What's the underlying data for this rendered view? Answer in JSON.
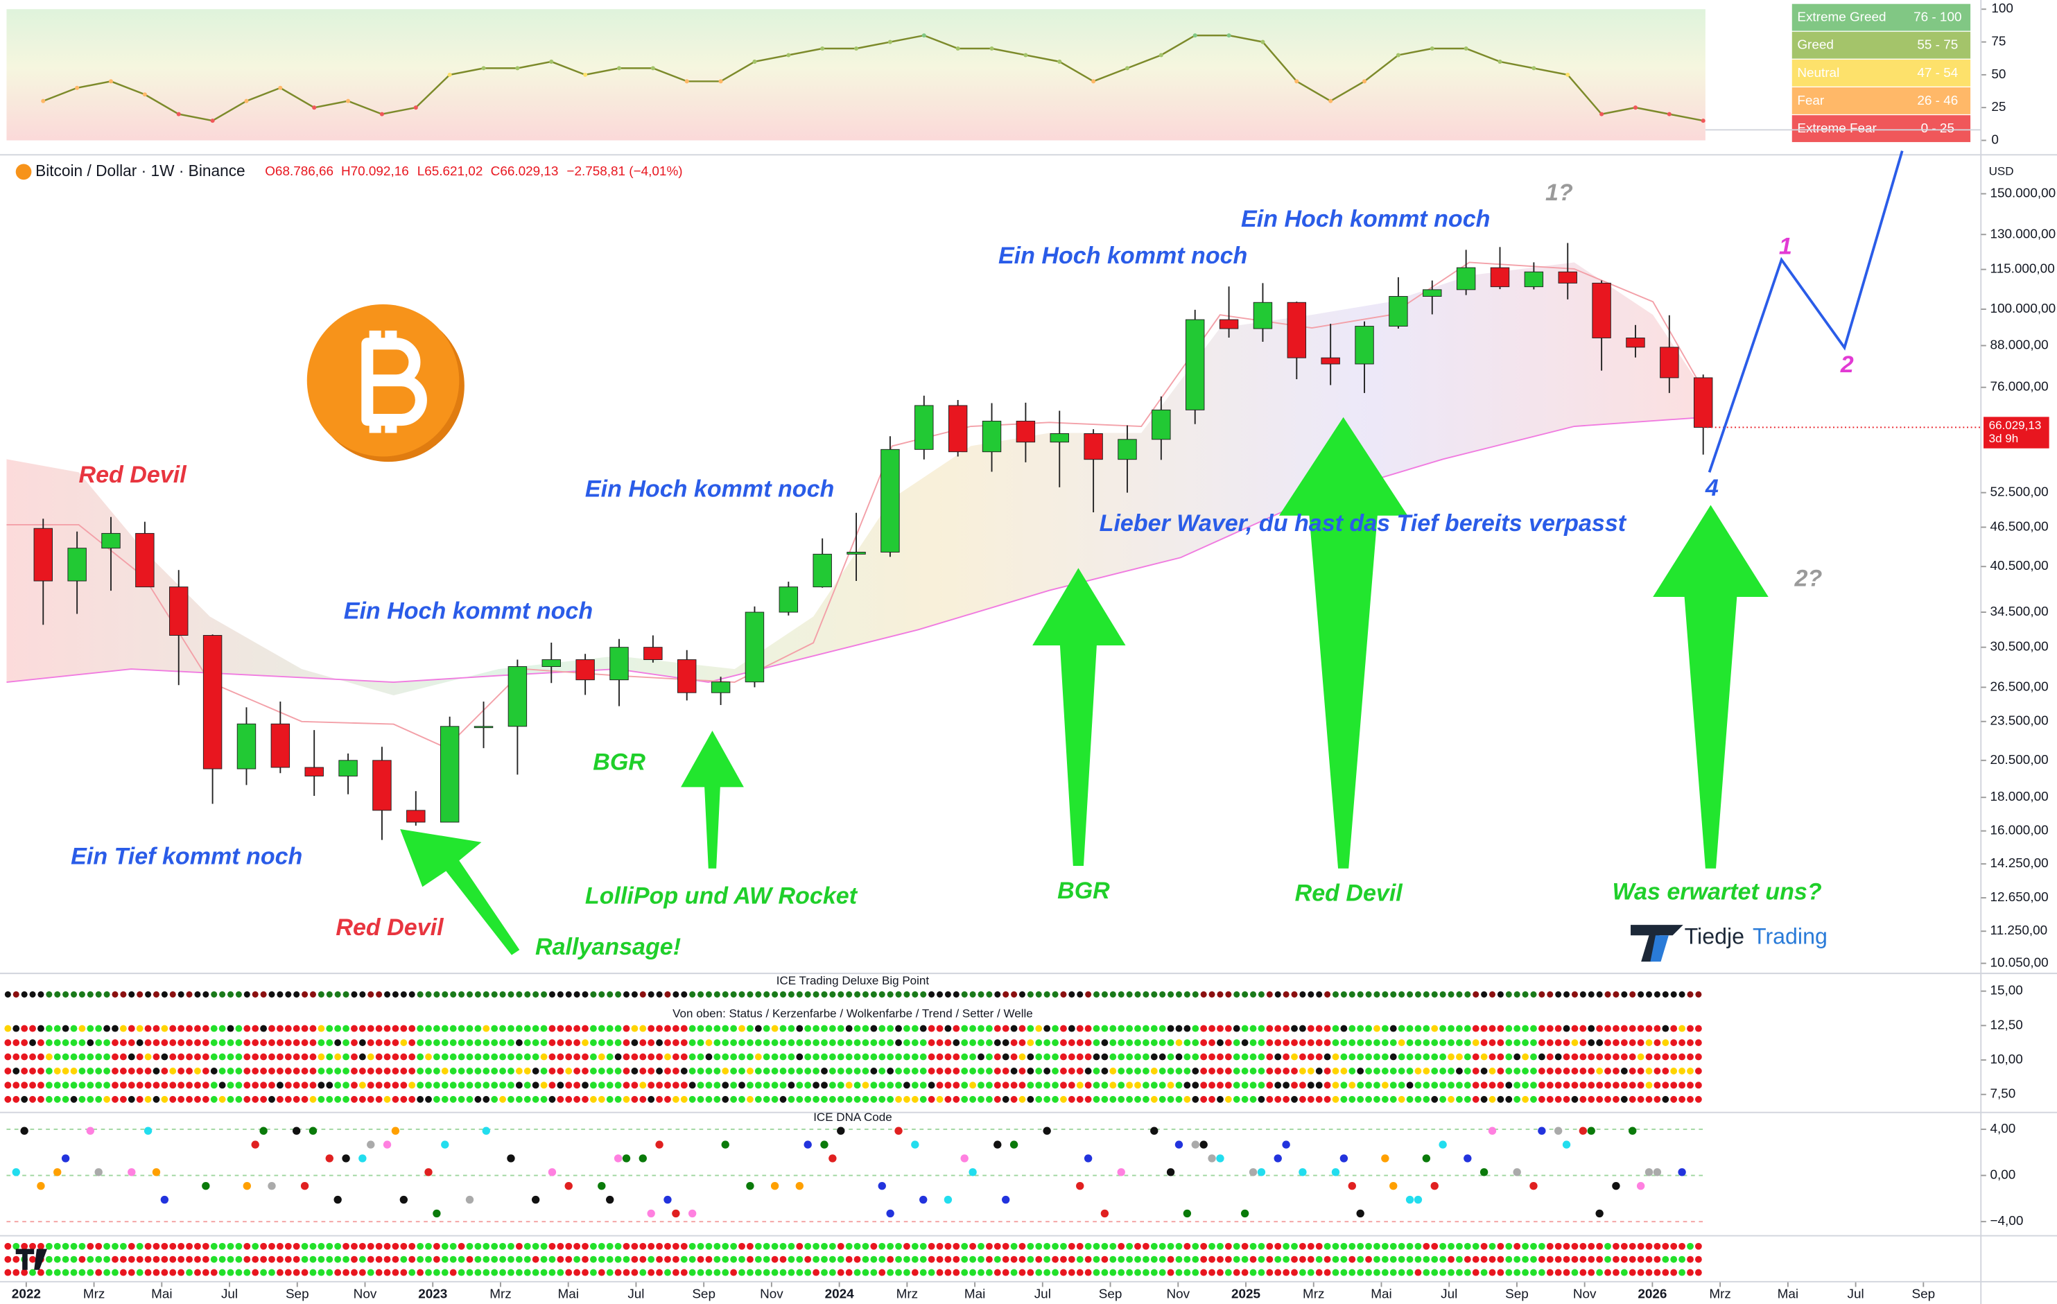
{
  "chart_data": [
    {
      "type": "line",
      "x": [
        "2022-01",
        "2022-02",
        "2022-03",
        "2022-04",
        "2022-05",
        "2022-06",
        "2022-07",
        "2022-08",
        "2022-09",
        "2022-10",
        "2022-11",
        "2022-12",
        "2023-01",
        "2023-02",
        "2023-03",
        "2023-04",
        "2023-05",
        "2023-06",
        "2023-07",
        "2023-08",
        "2023-09",
        "2023-10",
        "2023-11",
        "2023-12",
        "2024-01",
        "2024-02",
        "2024-03",
        "2024-04",
        "2024-05",
        "2024-06",
        "2024-07",
        "2024-08",
        "2024-09",
        "2024-10",
        "2024-11",
        "2024-12",
        "2025-01",
        "2025-02",
        "2025-03",
        "2025-04",
        "2025-05",
        "2025-06",
        "2025-07",
        "2025-08",
        "2025-09",
        "2025-10",
        "2025-11",
        "2025-12",
        "2026-01",
        "2026-02"
      ],
      "values": [
        30,
        40,
        45,
        35,
        20,
        15,
        30,
        40,
        25,
        30,
        20,
        25,
        50,
        55,
        55,
        60,
        50,
        55,
        55,
        45,
        45,
        60,
        65,
        70,
        70,
        75,
        80,
        70,
        70,
        65,
        60,
        45,
        55,
        65,
        80,
        80,
        75,
        45,
        30,
        45,
        65,
        70,
        70,
        60,
        55,
        50,
        20,
        25,
        20,
        15
      ],
      "ylim": [
        0,
        100
      ],
      "yticks": [
        0,
        25,
        50,
        75,
        100
      ],
      "legend": [
        {
          "label": "Extreme Greed",
          "range": "76 - 100",
          "color": "#81c784",
          "min": 76
        },
        {
          "label": "Greed",
          "range": "55 - 75",
          "color": "#a4c46a",
          "min": 55
        },
        {
          "label": "Neutral",
          "range": "47 - 54",
          "color": "#fde16b",
          "min": 47
        },
        {
          "label": "Fear",
          "range": "26 - 46",
          "color": "#ffb868",
          "min": 26
        },
        {
          "label": "Extreme Fear",
          "range": "0 - 25",
          "color": "#f0575a",
          "min": 0
        }
      ]
    },
    {
      "type": "candlestick",
      "title": "Bitcoin / Dollar · 1W · Binance",
      "ohlc_texts": [
        "O68.786,66",
        "H70.092,16",
        "L65.621,02",
        "C66.029,13",
        "−2.758,81 (−4,01%)"
      ],
      "currency": "USD",
      "x": [
        "2022-01",
        "2022-02",
        "2022-03",
        "2022-04",
        "2022-05",
        "2022-06",
        "2022-07",
        "2022-08",
        "2022-09",
        "2022-10",
        "2022-11",
        "2022-12",
        "2023-01",
        "2023-02",
        "2023-03",
        "2023-04",
        "2023-05",
        "2023-06",
        "2023-07",
        "2023-08",
        "2023-09",
        "2023-10",
        "2023-11",
        "2023-12",
        "2024-01",
        "2024-02",
        "2024-03",
        "2024-04",
        "2024-05",
        "2024-06",
        "2024-07",
        "2024-08",
        "2024-09",
        "2024-10",
        "2024-11",
        "2024-12",
        "2025-01",
        "2025-02",
        "2025-03",
        "2025-04",
        "2025-05",
        "2025-06",
        "2025-07",
        "2025-08",
        "2025-09",
        "2025-10",
        "2025-11",
        "2025-12",
        "2026-01",
        "2026-02"
      ],
      "open": [
        46300,
        38500,
        43200,
        45500,
        37700,
        31800,
        19900,
        23300,
        20000,
        19400,
        20500,
        17200,
        16500,
        23100,
        23100,
        28500,
        29200,
        27200,
        30500,
        29200,
        26000,
        27000,
        34500,
        37700,
        42300,
        42600,
        61100,
        71300,
        60600,
        67500,
        62700,
        64600,
        59000,
        63300,
        70200,
        96400,
        93400,
        102400,
        84300,
        82500,
        94200,
        104600,
        107100,
        115700,
        108200,
        114000,
        109600,
        90400,
        87500,
        78600
      ],
      "high": [
        47900,
        45800,
        48200,
        47400,
        40000,
        31900,
        24700,
        25200,
        22800,
        21000,
        21500,
        18400,
        23900,
        25200,
        29200,
        31000,
        29800,
        31400,
        31800,
        30200,
        27500,
        35200,
        38400,
        44700,
        48900,
        64000,
        73800,
        72700,
        71900,
        72000,
        70000,
        65600,
        66500,
        73600,
        99800,
        108300,
        109600,
        102700,
        95000,
        95800,
        111900,
        110600,
        123200,
        124400,
        117900,
        126200,
        110600,
        94600,
        97900,
        79500
      ],
      "low": [
        33000,
        34300,
        37200,
        37700,
        26700,
        17600,
        18800,
        19600,
        18100,
        18200,
        15500,
        16300,
        16500,
        21400,
        19500,
        26900,
        25800,
        24800,
        28900,
        25300,
        24900,
        26500,
        34100,
        37600,
        38500,
        41900,
        59000,
        59600,
        56500,
        58400,
        53500,
        49000,
        52500,
        58900,
        66800,
        90500,
        89200,
        78200,
        76600,
        74500,
        93400,
        98200,
        105100,
        107300,
        107200,
        103500,
        80600,
        84400,
        74500,
        60000
      ],
      "close": [
        38500,
        43200,
        45500,
        37700,
        31800,
        19900,
        23300,
        20000,
        19400,
        20500,
        17200,
        16500,
        23100,
        23100,
        28500,
        29200,
        27200,
        30500,
        29200,
        26000,
        27000,
        34500,
        37700,
        42300,
        42600,
        61100,
        71300,
        60600,
        67500,
        62700,
        64600,
        59000,
        63300,
        70200,
        96400,
        93400,
        102400,
        84300,
        82500,
        94200,
        104600,
        107100,
        115700,
        108200,
        114000,
        109600,
        90400,
        87500,
        78600,
        66029.13
      ],
      "last_price_label": "66.029,13",
      "countdown": "3d 9h",
      "log_scale": true,
      "ylim": [
        9700,
        172000
      ],
      "yticks": [
        {
          "value": 150000,
          "label": "150.000,00"
        },
        {
          "value": 130000,
          "label": "130.000,00"
        },
        {
          "value": 115000,
          "label": "115.000,00"
        },
        {
          "value": 100000,
          "label": "100.000,00"
        },
        {
          "value": 88000,
          "label": "88.000,00"
        },
        {
          "value": 76000,
          "label": "76.000,00"
        },
        {
          "value": 52500,
          "label": "52.500,00"
        },
        {
          "value": 46500,
          "label": "46.500,00"
        },
        {
          "value": 40500,
          "label": "40.500,00"
        },
        {
          "value": 34500,
          "label": "34.500,00"
        },
        {
          "value": 30500,
          "label": "30.500,00"
        },
        {
          "value": 26500,
          "label": "26.500,00"
        },
        {
          "value": 23500,
          "label": "23.500,00"
        },
        {
          "value": 20500,
          "label": "20.500,00"
        },
        {
          "value": 18000,
          "label": "18.000,00"
        },
        {
          "value": 16000,
          "label": "16.000,00"
        },
        {
          "value": 14250,
          "label": "14.250,00"
        },
        {
          "value": 12650,
          "label": "12.650,00"
        },
        {
          "value": 11250,
          "label": "11.250,00"
        },
        {
          "value": 10050,
          "label": "10.050,00"
        }
      ],
      "xlim": [
        "2022-01",
        "2026-10"
      ],
      "xticks": [
        {
          "value": "2022-01",
          "label": "2022"
        },
        {
          "value": "2022-03",
          "label": "Mrz"
        },
        {
          "value": "2022-05",
          "label": "Mai"
        },
        {
          "value": "2022-07",
          "label": "Jul"
        },
        {
          "value": "2022-09",
          "label": "Sep"
        },
        {
          "value": "2022-11",
          "label": "Nov"
        },
        {
          "value": "2023-01",
          "label": "2023"
        },
        {
          "value": "2023-03",
          "label": "Mrz"
        },
        {
          "value": "2023-05",
          "label": "Mai"
        },
        {
          "value": "2023-07",
          "label": "Jul"
        },
        {
          "value": "2023-09",
          "label": "Sep"
        },
        {
          "value": "2023-11",
          "label": "Nov"
        },
        {
          "value": "2024-01",
          "label": "2024"
        },
        {
          "value": "2024-03",
          "label": "Mrz"
        },
        {
          "value": "2024-05",
          "label": "Mai"
        },
        {
          "value": "2024-07",
          "label": "Jul"
        },
        {
          "value": "2024-09",
          "label": "Sep"
        },
        {
          "value": "2024-11",
          "label": "Nov"
        },
        {
          "value": "2025-01",
          "label": "2025"
        },
        {
          "value": "2025-03",
          "label": "Mrz"
        },
        {
          "value": "2025-05",
          "label": "Mai"
        },
        {
          "value": "2025-07",
          "label": "Jul"
        },
        {
          "value": "2025-09",
          "label": "Sep"
        },
        {
          "value": "2025-11",
          "label": "Nov"
        },
        {
          "value": "2026-01",
          "label": "2026"
        },
        {
          "value": "2026-03",
          "label": "Mrz"
        },
        {
          "value": "2026-05",
          "label": "Mai"
        },
        {
          "value": "2026-07",
          "label": "Jul"
        },
        {
          "value": "2026-09",
          "label": "Sep"
        }
      ],
      "up_color": "#22c934",
      "down_color": "#e8161f",
      "annotations": [
        "Red Devil",
        "Ein Tief kommt noch",
        "Red Devil",
        "Rallyansage!",
        "Ein Hoch kommt noch",
        "BGR",
        "LolliPop und AW Rocket",
        "Ein Hoch kommt noch",
        "BGR",
        "Ein Hoch kommt noch",
        "Ein Hoch kommt noch",
        "Lieber Waver, du hast das Tief bereits verpasst",
        "Red Devil",
        "Was erwartet uns?",
        "1?",
        "2?",
        "1",
        "2",
        "4"
      ]
    },
    {
      "type": "dots",
      "title": "ICE Trading Deluxe Big Point",
      "subtitle": "Von oben: Status / Kerzenfarbe / Wolkenfarbe / Trend / Setter / Welle",
      "ylim": [
        6,
        16
      ],
      "yticks": [
        {
          "value": 15,
          "label": "15,00"
        },
        {
          "value": 12.5,
          "label": "12,50"
        },
        {
          "value": 10,
          "label": "10,00"
        },
        {
          "value": 7.5,
          "label": "7,50"
        }
      ]
    },
    {
      "type": "dots",
      "title": "ICE DNA Code",
      "ylim": [
        -5,
        5
      ],
      "yticks": [
        {
          "value": 4,
          "label": "4,00"
        },
        {
          "value": 0,
          "label": "0,00"
        },
        {
          "value": -4,
          "label": "−4,00"
        }
      ]
    }
  ],
  "logo": {
    "name": "Tiedje",
    "suffix": "Trading"
  }
}
